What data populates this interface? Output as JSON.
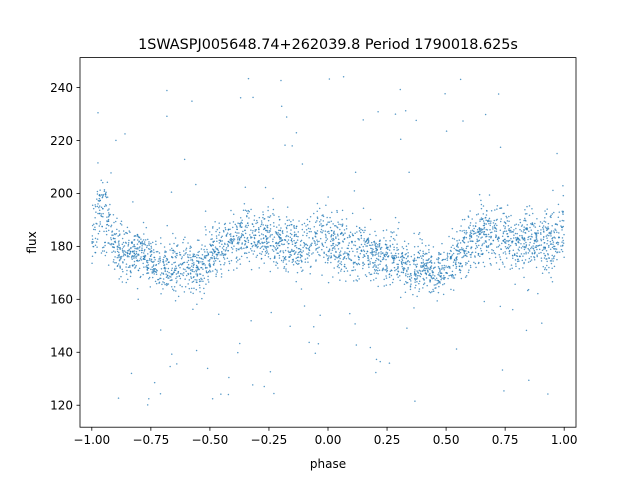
{
  "chart_data": {
    "type": "scatter",
    "title": "1SWASPJ005648.74+262039.8 Period 1790018.625s",
    "xlabel": "phase",
    "ylabel": "flux",
    "xlim": [
      -1.05,
      1.05
    ],
    "ylim": [
      111.7,
      251.3
    ],
    "xticks": [
      -1.0,
      -0.75,
      -0.5,
      -0.25,
      0.0,
      0.25,
      0.5,
      0.75,
      1.0
    ],
    "xtick_labels": [
      "−1.00",
      "−0.75",
      "−0.50",
      "−0.25",
      "0.00",
      "0.25",
      "0.50",
      "0.75",
      "1.00"
    ],
    "yticks": [
      120,
      140,
      160,
      180,
      200,
      220,
      240
    ],
    "ytick_labels": [
      "120",
      "140",
      "160",
      "180",
      "200",
      "220",
      "240"
    ],
    "grid": false,
    "legend": "none",
    "point_color": "#1f77b4",
    "series": [
      {
        "x": [
          -1.0,
          -0.96,
          -0.9,
          -0.85,
          -0.8,
          -0.75,
          -0.7,
          -0.65,
          -0.6,
          -0.55,
          -0.5,
          -0.45,
          -0.4,
          -0.35,
          -0.3,
          -0.25,
          -0.2,
          -0.15,
          -0.1,
          -0.05,
          0.0,
          0.05,
          0.1,
          0.15,
          0.2,
          0.25,
          0.3,
          0.35,
          0.4,
          0.45,
          0.5,
          0.55,
          0.6,
          0.65,
          0.7,
          0.75,
          0.8,
          0.85,
          0.9,
          0.95,
          1.0
        ],
        "y": [
          185,
          195,
          180,
          177,
          178,
          176,
          170,
          172,
          175,
          171,
          176,
          180,
          183,
          186,
          182,
          184,
          181,
          179,
          180,
          183,
          184,
          180,
          179,
          178,
          177,
          176,
          174,
          171,
          173,
          170,
          174,
          177,
          181,
          185,
          186,
          182,
          180,
          183,
          182,
          183,
          185
        ],
        "spread": [
          10,
          14,
          9,
          9,
          9,
          10,
          9,
          9,
          9,
          9,
          9,
          9,
          9,
          10,
          9,
          10,
          9,
          9,
          9,
          10,
          11,
          10,
          9,
          9,
          9,
          9,
          9,
          9,
          9,
          9,
          9,
          9,
          9,
          10,
          11,
          10,
          9,
          9,
          9,
          11,
          11
        ]
      }
    ]
  }
}
